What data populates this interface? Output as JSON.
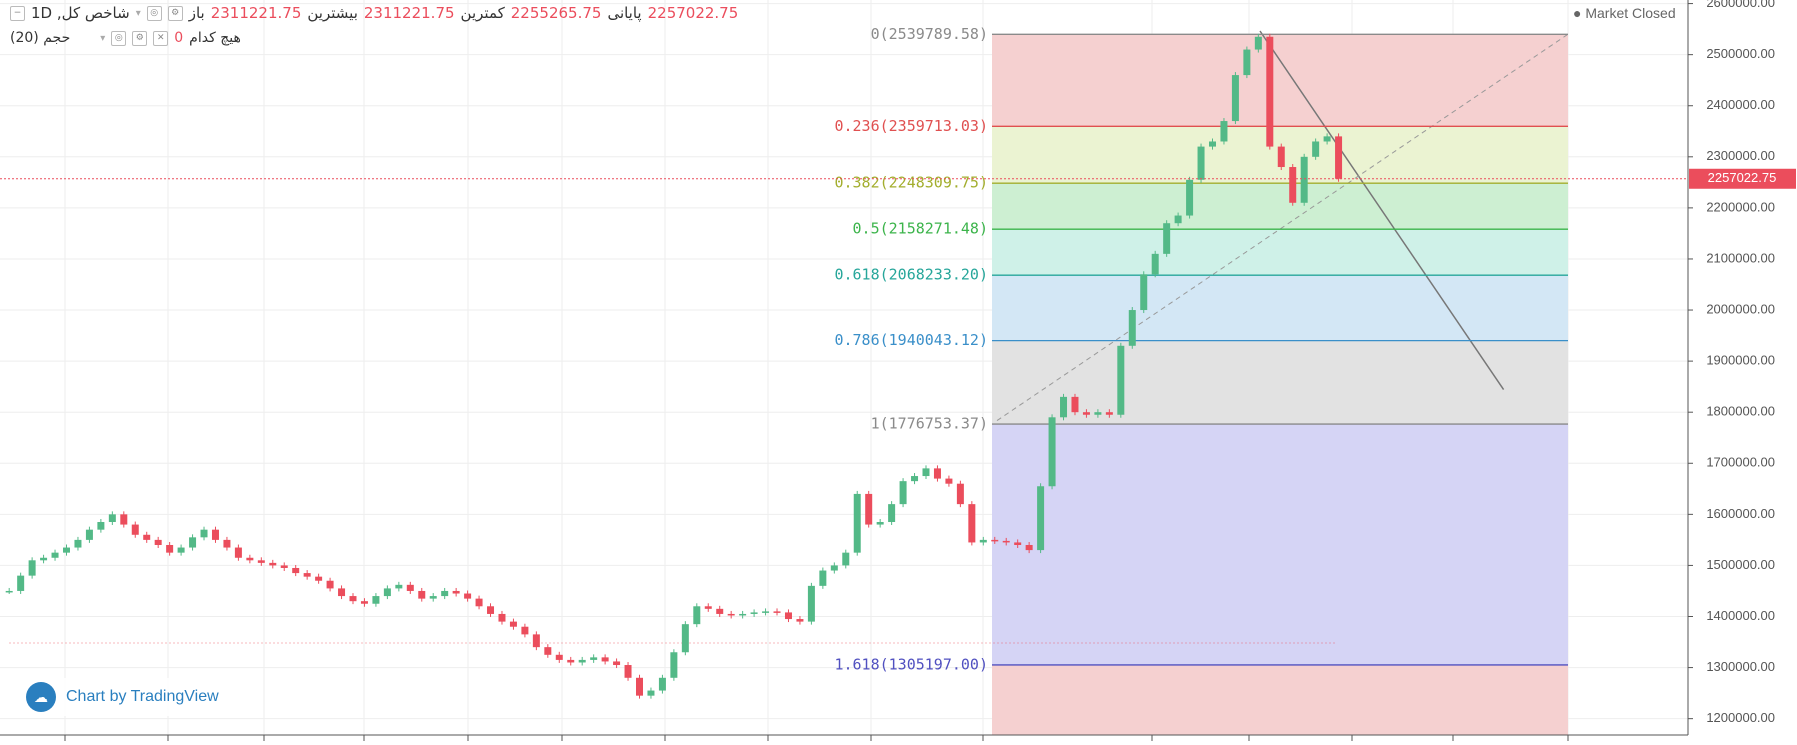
{
  "header": {
    "symbol": "شاخص کل, 1D",
    "open_label": "باز",
    "open": "2311221.75",
    "high_label": "بیشترین",
    "high": "2311221.75",
    "low_label": "کمترین",
    "low": "2255265.75",
    "close_label": "پایانی",
    "close": "2257022.75",
    "volume_label": "حجم (20)",
    "volume_value": "0",
    "volume_ma": "هیچ کدام",
    "status": "Market Closed",
    "logo": "Chart by TradingView"
  },
  "chart_data": {
    "type": "candlestick",
    "close": [
      1450000,
      1480000,
      1510000,
      1515000,
      1525000,
      1535000,
      1550000,
      1570000,
      1585000,
      1600000,
      1580000,
      1560000,
      1550000,
      1540000,
      1525000,
      1535000,
      1555000,
      1570000,
      1550000,
      1535000,
      1515000,
      1510000,
      1505000,
      1500000,
      1495000,
      1485000,
      1478000,
      1470000,
      1455000,
      1440000,
      1430000,
      1425000,
      1440000,
      1455000,
      1462000,
      1450000,
      1435000,
      1440000,
      1450000,
      1445000,
      1435000,
      1420000,
      1405000,
      1390000,
      1380000,
      1365000,
      1340000,
      1325000,
      1315000,
      1310000,
      1315000,
      1320000,
      1312000,
      1305000,
      1280000,
      1245000,
      1255000,
      1280000,
      1330000,
      1385000,
      1420000,
      1415000,
      1405000,
      1402000,
      1405000,
      1408000,
      1410000,
      1408000,
      1395000,
      1390000,
      1460000,
      1490000,
      1500000,
      1525000,
      1640000,
      1580000,
      1585000,
      1620000,
      1665000,
      1675000,
      1690000,
      1670000,
      1660000,
      1620000,
      1545000,
      1550000,
      1548000,
      1545000,
      1540000,
      1530000,
      1655000,
      1790000,
      1830000,
      1800000,
      1795000,
      1800000,
      1795000,
      1930000,
      2000000,
      2070000,
      2110000,
      2170000,
      2185000,
      2255000,
      2320000,
      2330000,
      2370000,
      2460000,
      2510000,
      2535000,
      2320000,
      2280000,
      2210000,
      2300000,
      2330000,
      2340000,
      2257022.75
    ],
    "up_color": "#53b987",
    "down_color": "#eb4d5c",
    "ylim": [
      1168000,
      2607000
    ],
    "yticks": [
      {
        "value": 2600000,
        "label": "2600000.00"
      },
      {
        "value": 2500000,
        "label": "2500000.00"
      },
      {
        "value": 2400000,
        "label": "2400000.00"
      },
      {
        "value": 2300000,
        "label": "2300000.00"
      },
      {
        "value": 2200000,
        "label": "2200000.00"
      },
      {
        "value": 2100000,
        "label": "2100000.00"
      },
      {
        "value": 2000000,
        "label": "2000000.00"
      },
      {
        "value": 1900000,
        "label": "1900000.00"
      },
      {
        "value": 1800000,
        "label": "1800000.00"
      },
      {
        "value": 1700000,
        "label": "1700000.00"
      },
      {
        "value": 1600000,
        "label": "1600000.00"
      },
      {
        "value": 1500000,
        "label": "1500000.00"
      },
      {
        "value": 1400000,
        "label": "1400000.00"
      },
      {
        "value": 1300000,
        "label": "1300000.00"
      },
      {
        "value": 1200000,
        "label": "1200000.00"
      }
    ],
    "grid": true,
    "fib_levels": [
      {
        "label": "0(2539789.58)",
        "value": 2539789.58,
        "color": "#8a8a8a",
        "fill": "#f5d0d0"
      },
      {
        "label": "0.236(2359713.03)",
        "value": 2359713.03,
        "color": "#e05050",
        "fill": "#ebf3d2"
      },
      {
        "label": "0.382(2248309.75)",
        "value": 2248309.75,
        "color": "#a3ae2e",
        "fill": "#cdefd2"
      },
      {
        "label": "0.5(2158271.48)",
        "value": 2158271.48,
        "color": "#3cb44b",
        "fill": "#cff1e8"
      },
      {
        "label": "0.618(2068233.20)",
        "value": 2068233.2,
        "color": "#26a69a",
        "fill": "#d3e7f5"
      },
      {
        "label": "0.786(1940043.12)",
        "value": 1940043.12,
        "color": "#3a8fc9",
        "fill": "#e2e2e2"
      },
      {
        "label": "1(1776753.37)",
        "value": 1776753.37,
        "color": "#8a8a8a",
        "fill": "#d5d4f5"
      },
      {
        "label": "1.618(1305197.00)",
        "value": 1305197,
        "color": "#5050c0",
        "fill": "#f5d0d0"
      }
    ]
  }
}
